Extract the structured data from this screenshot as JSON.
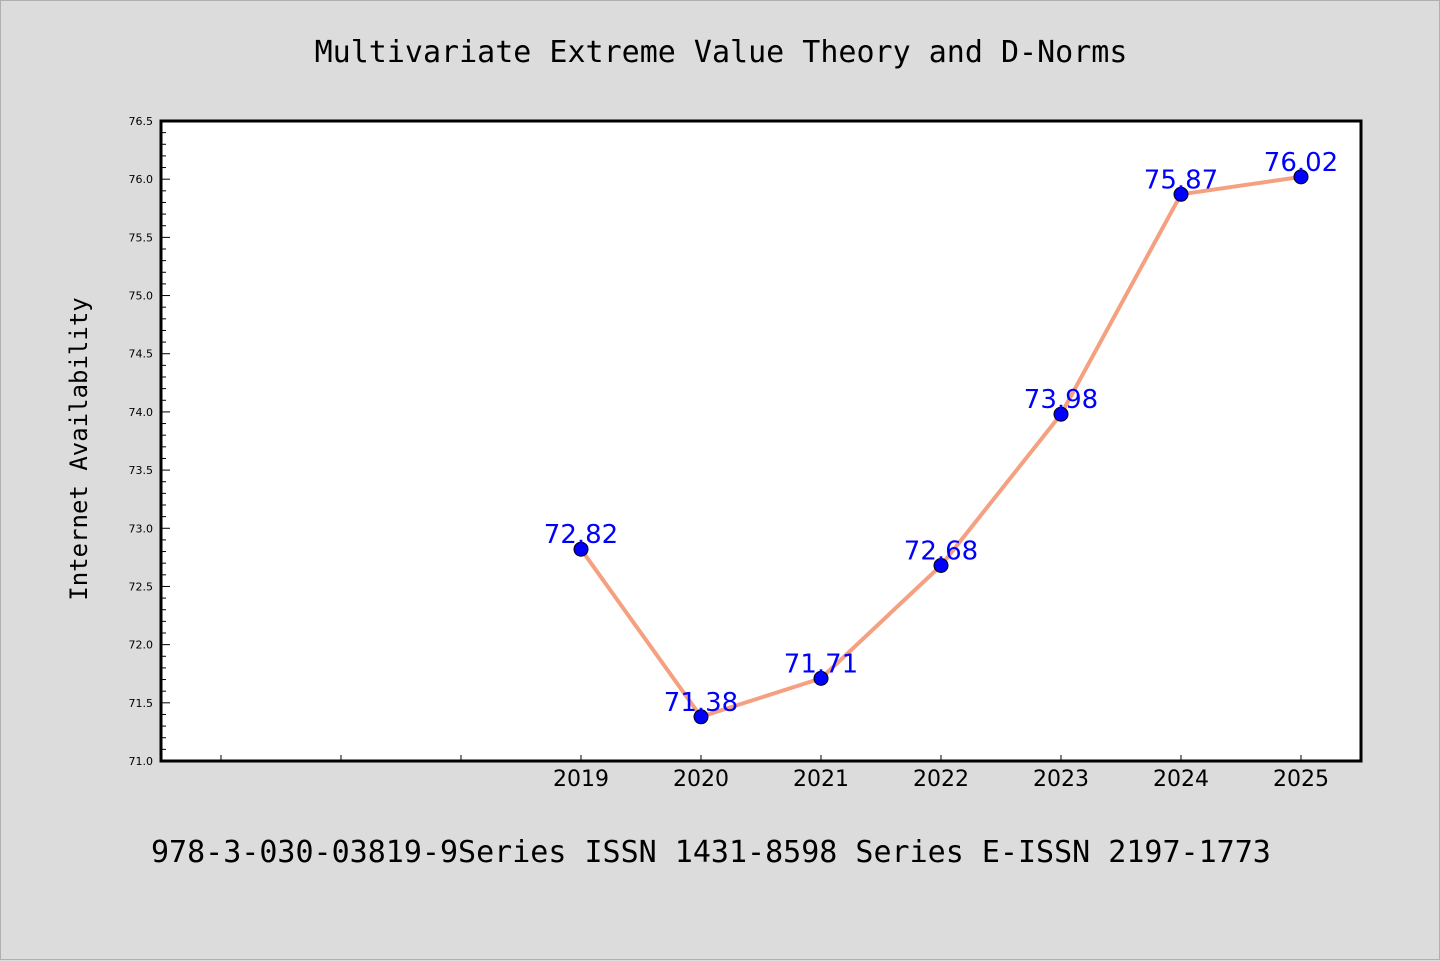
{
  "chart_data": {
    "type": "line",
    "title": "Multivariate Extreme Value Theory and D-Norms",
    "ylabel": "Internet Availability",
    "xlabel": "",
    "x": [
      "2019",
      "2020",
      "2021",
      "2022",
      "2023",
      "2024",
      "2025"
    ],
    "values": [
      72.82,
      71.38,
      71.71,
      72.68,
      73.98,
      75.87,
      76.02
    ],
    "data_labels": [
      "72.82",
      "71.38",
      "71.71",
      "72.68",
      "73.98",
      "75.87",
      "76.02"
    ],
    "yticks": [
      "71.0",
      "71.5",
      "72.0",
      "72.5",
      "73.0",
      "73.5",
      "74.0",
      "74.5",
      "75.0",
      "75.5",
      "76.0",
      "76.5"
    ],
    "ylim": [
      71.0,
      76.5
    ],
    "xlim": [
      2015.5,
      2025.5
    ],
    "grid": false,
    "line_color": "#f5a080",
    "marker_color": "#0000ff",
    "label_color": "#0000ff"
  },
  "footer": "978-3-030-03819-9Series ISSN 1431-8598 Series E-ISSN 2197-1773"
}
